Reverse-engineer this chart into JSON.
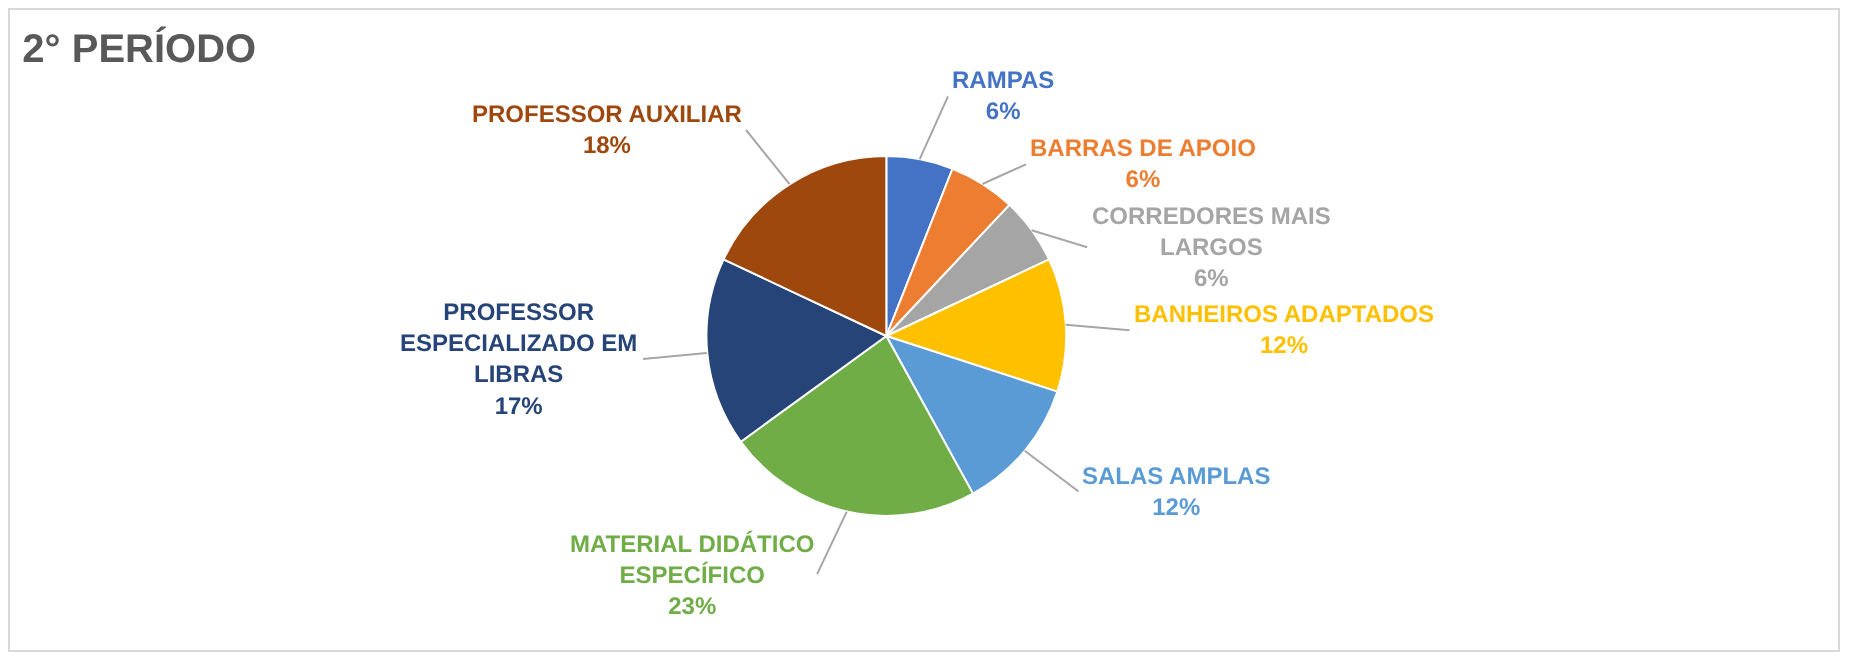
{
  "chart_data": {
    "type": "pie",
    "title": "2° PERÍODO",
    "categories": [
      "RAMPAS",
      "BARRAS DE APOIO",
      "CORREDORES MAIS LARGOS",
      "BANHEIROS ADAPTADOS",
      "SALAS AMPLAS",
      "MATERIAL DIDÁTICO ESPECÍFICO",
      "PROFESSOR ESPECIALIZADO EM LIBRAS",
      "PROFESSOR AUXILIAR"
    ],
    "values": [
      6,
      6,
      6,
      12,
      12,
      23,
      17,
      18
    ],
    "value_labels": [
      "6%",
      "6%",
      "6%",
      "12%",
      "12%",
      "23%",
      "17%",
      "18%"
    ],
    "colors": [
      "#4472c4",
      "#ed7d31",
      "#a5a5a5",
      "#ffc000",
      "#5b9bd5",
      "#70ad47",
      "#264478",
      "#9e480e"
    ],
    "legend": false
  }
}
